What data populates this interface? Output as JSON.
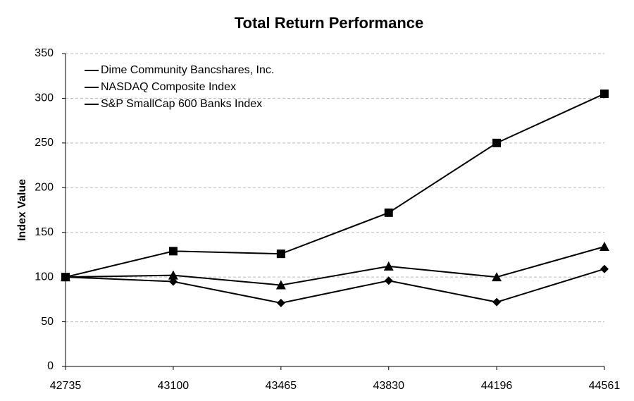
{
  "chart_data": {
    "type": "line",
    "title": "Total Return Performance",
    "y_label": "Index Value",
    "x": [
      42735,
      43100,
      43465,
      43830,
      44196,
      44561
    ],
    "xlim": [
      42735,
      44561
    ],
    "xticks": [
      42735,
      43100,
      43465,
      43830,
      44196,
      44561
    ],
    "ylim": [
      0,
      350
    ],
    "yticks": [
      0,
      50,
      100,
      150,
      200,
      250,
      300,
      350
    ],
    "grid": true,
    "legend": "upper left",
    "series": [
      {
        "name": "Dime Community Bancshares, Inc.",
        "color": "#000000",
        "marker": "diamond",
        "values": [
          100,
          95,
          71,
          96,
          72,
          109
        ]
      },
      {
        "name": "NASDAQ Composite Index",
        "color": "#000000",
        "marker": "square",
        "values": [
          100,
          129,
          126,
          172,
          250,
          305
        ]
      },
      {
        "name": "S&P SmallCap 600 Banks Index",
        "color": "#000000",
        "marker": "triangle",
        "values": [
          100,
          102,
          91,
          112,
          100,
          134
        ]
      }
    ]
  }
}
